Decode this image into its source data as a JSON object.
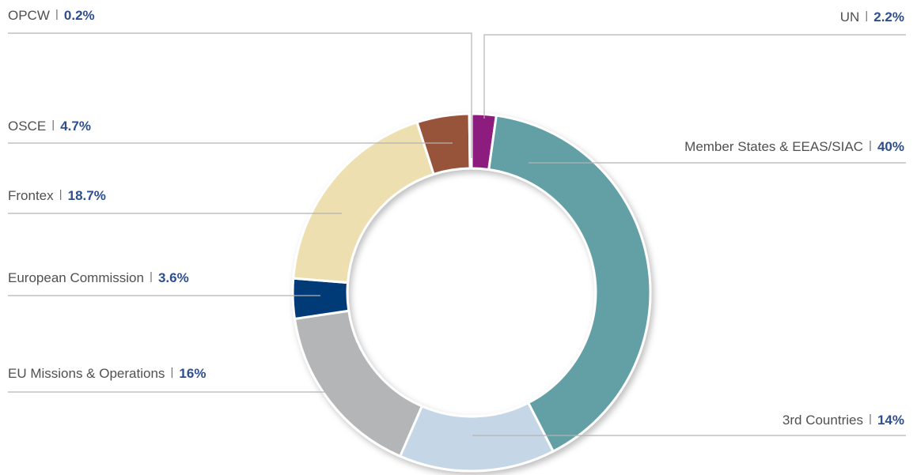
{
  "chart_data": {
    "type": "donut",
    "categories": [
      "UN",
      "Member States & EEAS/SIAC",
      "3rd Countries",
      "EU Missions & Operations",
      "European Commission",
      "Frontex",
      "OSCE",
      "OPCW"
    ],
    "values": [
      2.2,
      40,
      14,
      16,
      3.6,
      18.7,
      4.7,
      0.2
    ],
    "value_labels": [
      "2.2%",
      "40%",
      "14%",
      "16%",
      "3.6%",
      "18.7%",
      "4.7%",
      "0.2%"
    ],
    "colors": [
      "#8c1a7d",
      "#63a0a6",
      "#c5d6e6",
      "#b4b5b7",
      "#003b78",
      "#eedfb0",
      "#98533a",
      "#c9c9c9"
    ]
  }
}
